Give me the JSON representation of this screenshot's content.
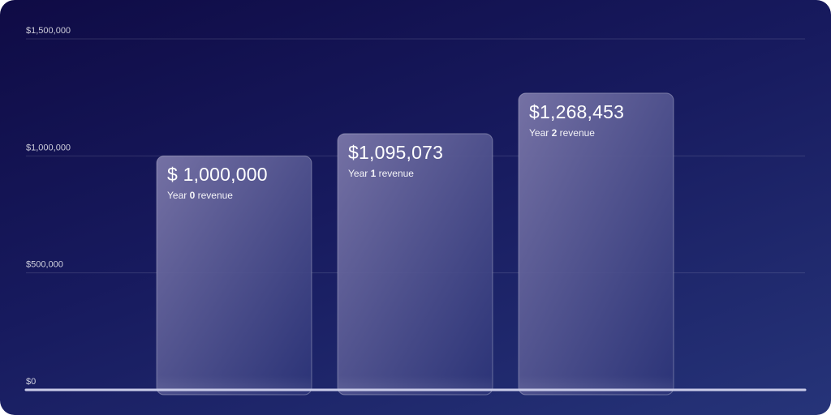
{
  "chart_data": {
    "type": "bar",
    "categories": [
      "Year 0",
      "Year 1",
      "Year 2"
    ],
    "values": [
      1000000,
      1095073,
      1268453
    ],
    "ylim": [
      0,
      1500000
    ],
    "y_ticks": [
      0,
      500000,
      1000000,
      1500000
    ],
    "y_tick_labels": [
      "$0",
      "$500,000",
      "$1,000,000",
      "$1,500,000"
    ],
    "grid": true,
    "bar_labels": [
      {
        "value_text": "$ 1,000,000",
        "prefix": "Year ",
        "year": "0",
        "suffix": " revenue"
      },
      {
        "value_text": "$1,095,073",
        "prefix": "Year ",
        "year": "1",
        "suffix": " revenue"
      },
      {
        "value_text": "$1,268,453",
        "prefix": "Year ",
        "year": "2",
        "suffix": " revenue"
      }
    ]
  },
  "colors": {
    "background_dark": "#0f0b45",
    "background_light": "#263479",
    "bar_top_left": "#7a76a8",
    "bar_bottom_right": "#2c3478",
    "baseline": "#c9cbe8"
  }
}
